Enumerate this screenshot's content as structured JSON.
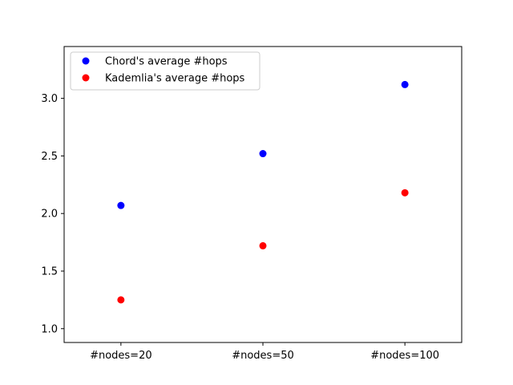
{
  "chart_data": {
    "type": "scatter",
    "title": "",
    "xlabel": "",
    "ylabel": "",
    "categories": [
      "#nodes=20",
      "#nodes=50",
      "#nodes=100"
    ],
    "series": [
      {
        "name": "Chord's average #hops",
        "color": "#0000ff",
        "values": [
          2.07,
          2.52,
          3.12
        ]
      },
      {
        "name": "Kademlia's average #hops",
        "color": "#ff0000",
        "values": [
          1.25,
          1.72,
          2.18
        ]
      }
    ],
    "ylim": [
      0.88,
      3.45
    ],
    "yticks": [
      "1.0",
      "1.5",
      "2.0",
      "2.5",
      "3.0"
    ],
    "grid": false,
    "legend_position": "top-left"
  }
}
